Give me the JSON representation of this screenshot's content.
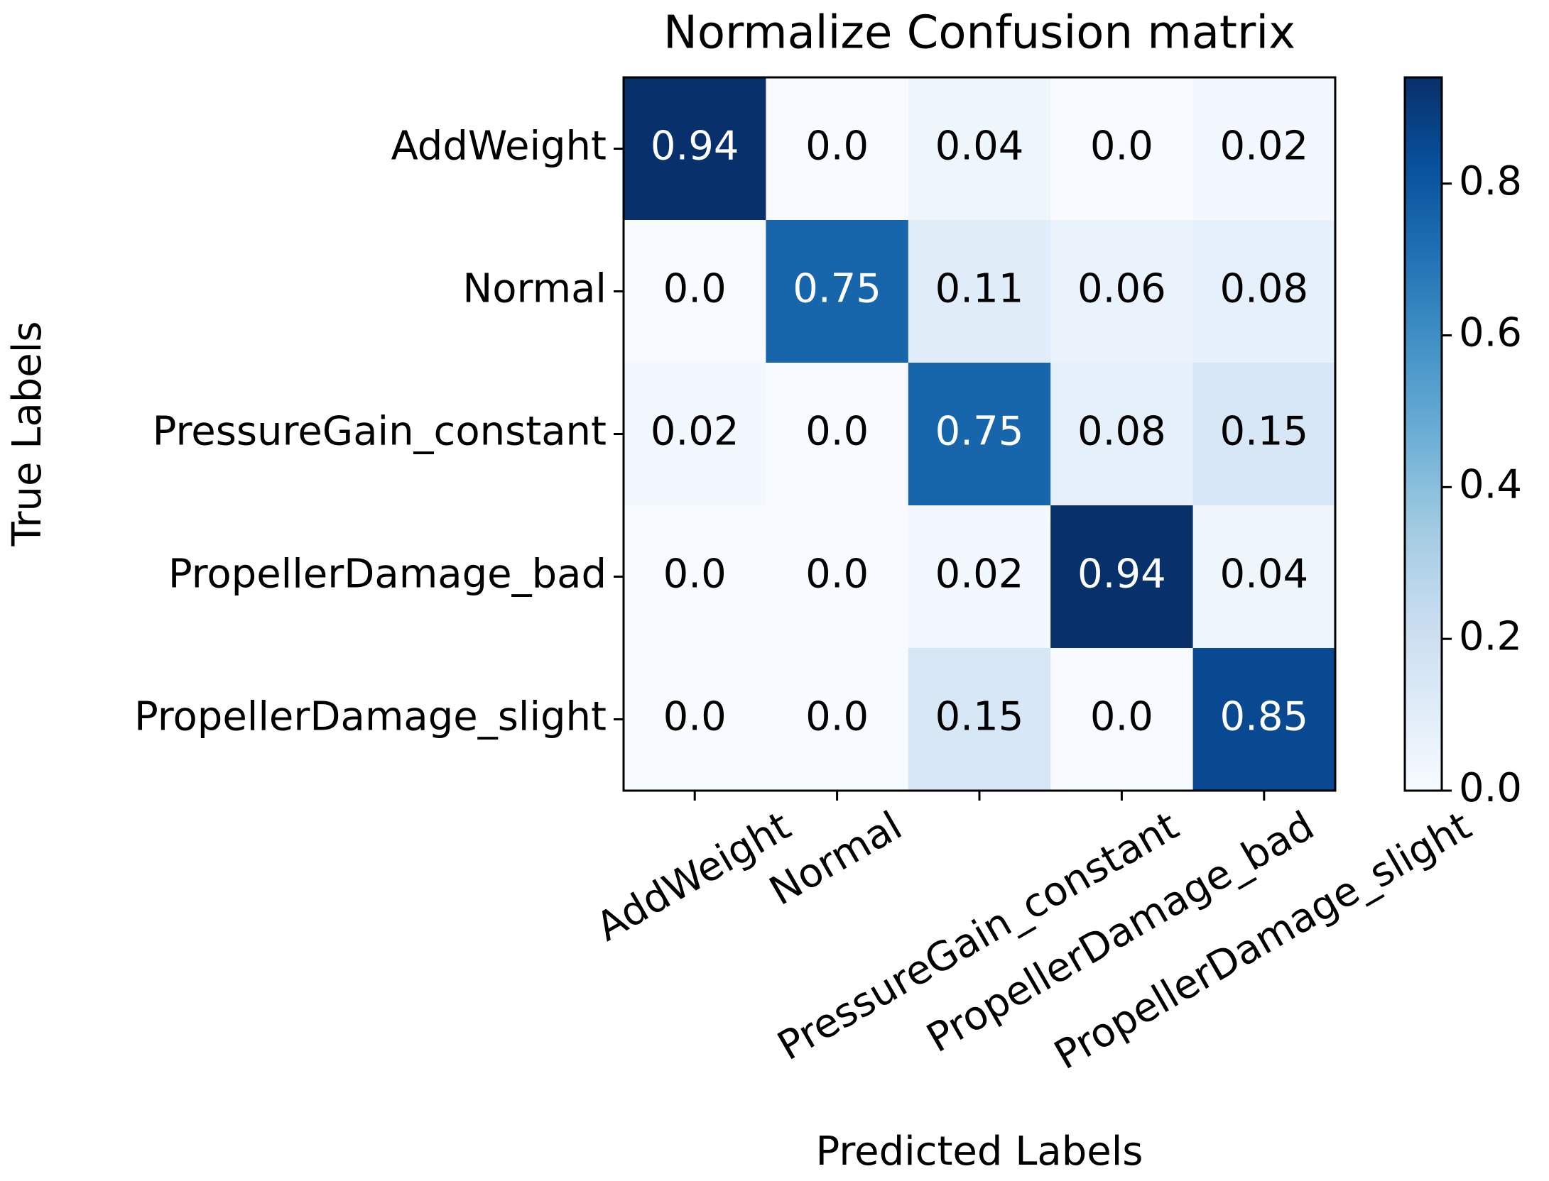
{
  "chart_data": {
    "type": "heatmap",
    "title": "Normalize Confusion matrix",
    "x_label": "Predicted Labels",
    "y_label": "True Labels",
    "x_categories": [
      "AddWeight",
      "Normal",
      "PressureGain_constant",
      "PropellerDamage_bad",
      "PropellerDamage_slight"
    ],
    "y_categories": [
      "AddWeight",
      "Normal",
      "PressureGain_constant",
      "PropellerDamage_bad",
      "PropellerDamage_slight"
    ],
    "values": [
      [
        0.94,
        0,
        0.04,
        0,
        0.02
      ],
      [
        0,
        0.75,
        0.11,
        0.06,
        0.08
      ],
      [
        0.02,
        0,
        0.75,
        0.08,
        0.15
      ],
      [
        0,
        0,
        0.02,
        0.94,
        0.04
      ],
      [
        0,
        0,
        0.15,
        0,
        0.85
      ]
    ],
    "value_labels": [
      [
        "0.94",
        "0.0",
        "0.04",
        "0.0",
        "0.02"
      ],
      [
        "0.0",
        "0.75",
        "0.11",
        "0.06",
        "0.08"
      ],
      [
        "0.02",
        "0.0",
        "0.75",
        "0.08",
        "0.15"
      ],
      [
        "0.0",
        "0.0",
        "0.02",
        "0.94",
        "0.04"
      ],
      [
        "0.0",
        "0.0",
        "0.15",
        "0.0",
        "0.85"
      ]
    ],
    "colormap": [
      "#f7fbff",
      "#deebf7",
      "#c6dbef",
      "#9ecae1",
      "#6baed6",
      "#4292c6",
      "#2171b5",
      "#08519c",
      "#08306b"
    ],
    "colorbar_lim": [
      0,
      0.94
    ],
    "colorbar_ticks": [
      {
        "value": 0,
        "label": "0.0"
      },
      0.2,
      0.4,
      0.6,
      0.8
    ]
  }
}
